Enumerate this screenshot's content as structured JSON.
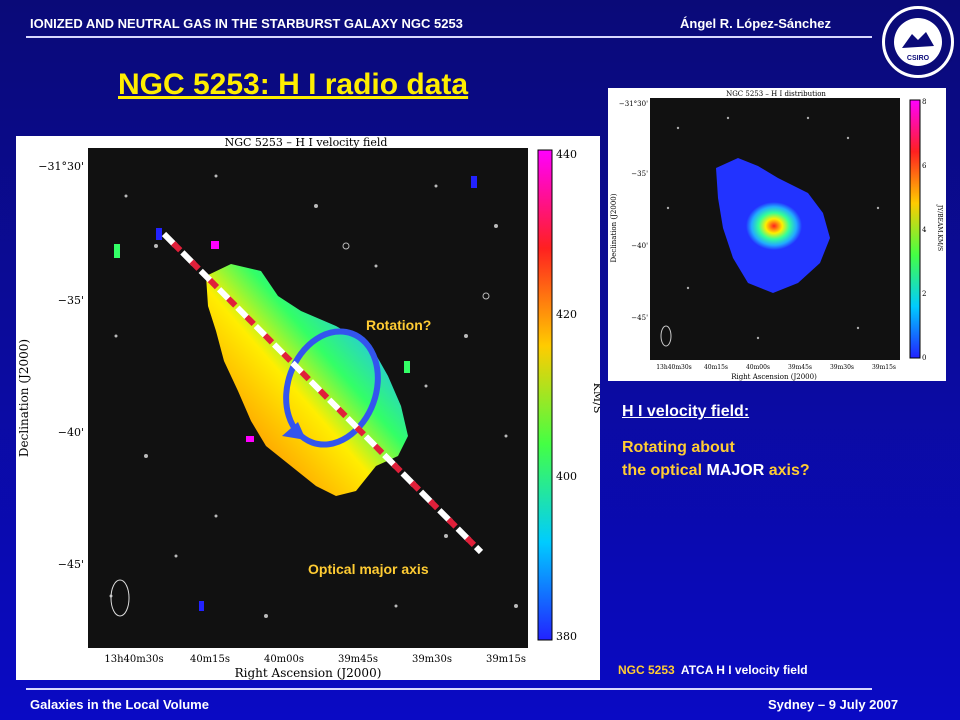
{
  "header": {
    "left": "IONIZED AND NEUTRAL GAS IN THE STARBURST GALAXY NGC 5253",
    "right": "Ángel R. López-Sánchez"
  },
  "logo": {
    "text": "CSIRO"
  },
  "title": "NGC 5253: H I radio data",
  "main_figure": {
    "title": "NGC 5253 – H I velocity field",
    "dec_ticks": [
      "−31°30'",
      "−35'",
      "−40'",
      "−45'"
    ],
    "ra_ticks": [
      "13h40m30s",
      "40m15s",
      "40m00s",
      "39m45s",
      "39m30s",
      "39m15s"
    ],
    "ra_label": "Right Ascension (J2000)",
    "dec_label": "Declination (J2000)",
    "colorbar_ticks": [
      "440",
      "420",
      "400",
      "380"
    ],
    "colorbar_label": "KM/S",
    "rotation_label": "Rotation?",
    "axis_label": "Optical major axis"
  },
  "side_figure": {
    "title": "NGC 5253 – H I distribution",
    "dec_ticks": [
      "−31°30'",
      "−35'",
      "−40'",
      "−45'"
    ],
    "ra_ticks": [
      "13h40m30s",
      "40m15s",
      "40m00s",
      "39m45s",
      "39m30s",
      "39m15s"
    ],
    "ra_label": "Right Ascension (J2000)",
    "dec_label": "Declination (J2000)",
    "colorbar_ticks": [
      "8",
      "6",
      "4",
      "2",
      "0"
    ],
    "colorbar_label": "JY/BEAM.KM/S"
  },
  "velocity_field": {
    "title": "H I velocity field:",
    "line1": "Rotating about",
    "line2_pre": "the optical",
    "line2_emph": " MAJOR",
    "line2_post": " axis?"
  },
  "caption": {
    "object": "NGC 5253",
    "text": "  ATCA H I velocity field"
  },
  "footer": {
    "left": "Galaxies in the Local Volume",
    "right": "Sydney – 9 July 2007"
  }
}
